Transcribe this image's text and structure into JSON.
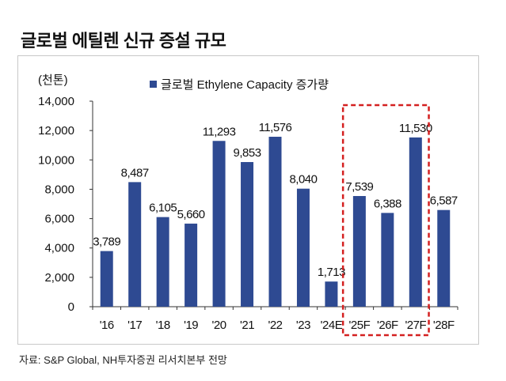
{
  "title": "글로벌 에틸렌 신규 증설 규모",
  "source": "자료: S&P Global, NH투자증권 리서치본부 전망",
  "chart_data": {
    "type": "bar",
    "unit_label": "(천톤)",
    "categories": [
      "'16",
      "'17",
      "'18",
      "'19",
      "'20",
      "'21",
      "'22",
      "'23",
      "'24E",
      "'25F",
      "'26F",
      "'27F",
      "'28F"
    ],
    "series": [
      {
        "name": "글로벌 Ethylene Capacity 증가량",
        "values": [
          3789,
          8487,
          6105,
          5660,
          11293,
          9853,
          11576,
          8040,
          1713,
          7539,
          6388,
          11530,
          6587
        ],
        "color": "#2e4a92"
      }
    ],
    "data_labels": [
      "3,789",
      "8,487",
      "6,105",
      "5,660",
      "11,293",
      "9,853",
      "11,576",
      "8,040",
      "1,713",
      "7,539",
      "6,388",
      "11,530",
      "6,587"
    ],
    "yticks": [
      "0",
      "2,000",
      "4,000",
      "6,000",
      "8,000",
      "10,000",
      "12,000",
      "14,000"
    ],
    "ylim": [
      0,
      14000
    ],
    "grid": false,
    "legend": "top",
    "highlight": {
      "categories": [
        "'25F",
        "'26F",
        "'27F"
      ],
      "color": "#d42020",
      "style": "dashed"
    }
  }
}
